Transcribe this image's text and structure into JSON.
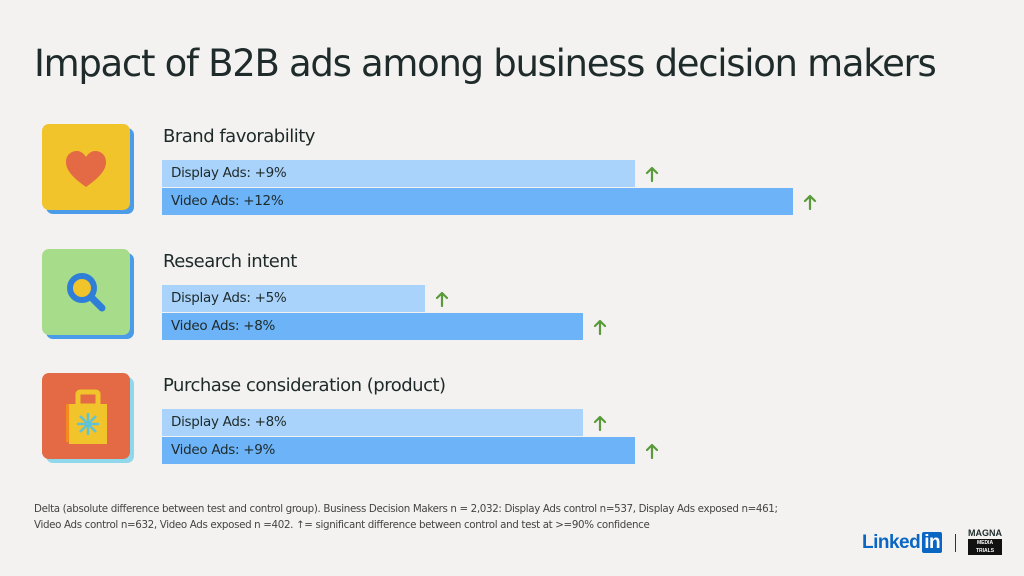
{
  "title": "Impact of B2B ads among business decision makers",
  "chart_data": {
    "type": "bar",
    "orientation": "horizontal",
    "title": "Impact of B2B ads among business decision makers",
    "unit": "%",
    "groups": [
      {
        "name": "Brand favorability",
        "icon": "heart-icon",
        "icon_bg": "#f0c42a",
        "icon_shadow": "#4a9be8",
        "bars": [
          {
            "label": "Display Ads: +9%",
            "series": "Display Ads",
            "value": 9,
            "significant": true
          },
          {
            "label": "Video Ads: +12%",
            "series": "Video Ads",
            "value": 12,
            "significant": true
          }
        ]
      },
      {
        "name": "Research intent",
        "icon": "magnifier-icon",
        "icon_bg": "#a6dc8a",
        "icon_shadow": "#4a9be8",
        "bars": [
          {
            "label": "Display Ads: +5%",
            "series": "Display Ads",
            "value": 5,
            "significant": true
          },
          {
            "label": "Video Ads: +8%",
            "series": "Video Ads",
            "value": 8,
            "significant": true
          }
        ]
      },
      {
        "name": "Purchase consideration (product)",
        "icon": "shopping-bag-icon",
        "icon_bg": "#e36a44",
        "icon_shadow": "#8fd8ec",
        "bars": [
          {
            "label": "Display Ads: +8%",
            "series": "Display Ads",
            "value": 8,
            "significant": true
          },
          {
            "label": "Video Ads: +9%",
            "series": "Video Ads",
            "value": 9,
            "significant": true
          }
        ]
      }
    ],
    "colors": {
      "Display Ads": "#a9d3fb",
      "Video Ads": "#6db3f8",
      "arrow": "#5a9a3a"
    }
  },
  "footnote": {
    "line1": "Delta (absolute difference between test and control group). Business Decision Makers n = 2,032: Display Ads control n=537, Display Ads exposed n=461;",
    "line2": "Video Ads control n=632, Video Ads exposed n =402. ↑= significant difference between control and test at >=90% confidence"
  },
  "logos": {
    "linkedin": "LinkedIn",
    "magna": "MAGNA MEDIA TRIALS"
  }
}
